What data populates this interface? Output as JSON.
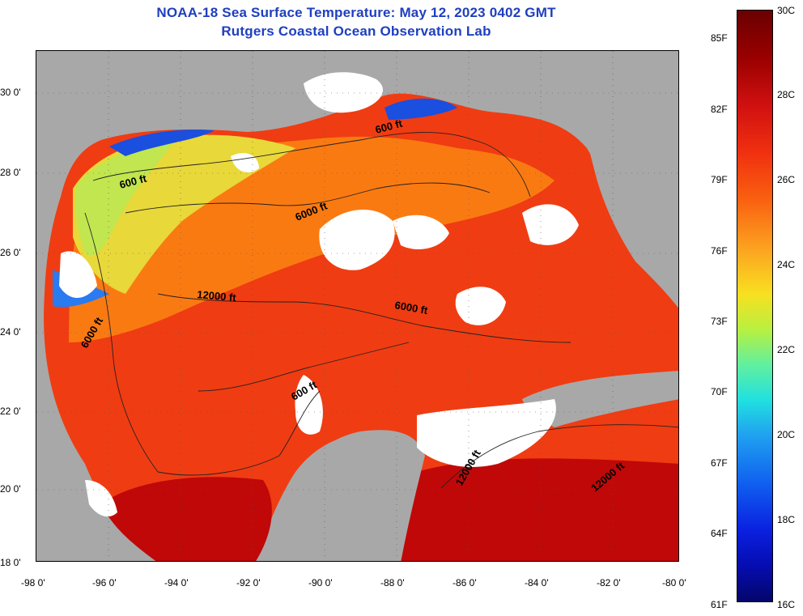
{
  "title_line1": "NOAA-18 Sea Surface Temperature:  May 12, 2023 0402 GMT",
  "title_line2": "Rutgers Coastal Ocean Observation Lab",
  "latitude_labels": [
    "30 0'",
    "28 0'",
    "26 0'",
    "24 0'",
    "22 0'",
    "20 0'",
    "18 0'"
  ],
  "longitude_labels": [
    "-98 0'",
    "-96 0'",
    "-94 0'",
    "-92 0'",
    "-90 0'",
    "-88 0'",
    "-86 0'",
    "-84 0'",
    "-82 0'",
    "-80 0'"
  ],
  "contour_labels": [
    "600 ft",
    "600 ft",
    "6000 ft",
    "12000 ft",
    "6000 ft",
    "6000 ft",
    "600 ft",
    "12000 ft",
    "12000 ft"
  ],
  "colorbar": {
    "fahrenheit_labels": [
      "85F",
      "82F",
      "79F",
      "76F",
      "73F",
      "70F",
      "67F",
      "64F",
      "61F"
    ],
    "celsius_labels": [
      "30C",
      "28C",
      "26C",
      "24C",
      "22C",
      "20C",
      "18C",
      "16C"
    ],
    "min_c": 16,
    "max_c": 30
  },
  "colors": {
    "title": "#1f3fbf",
    "land": "#a8a8a8",
    "cloud": "#ffffff",
    "warm_water": "#f03010",
    "hot_water": "#b00000",
    "mild_water": "#fa7a10",
    "cool_water": "#e8e840",
    "cold_water": "#1040e0"
  }
}
